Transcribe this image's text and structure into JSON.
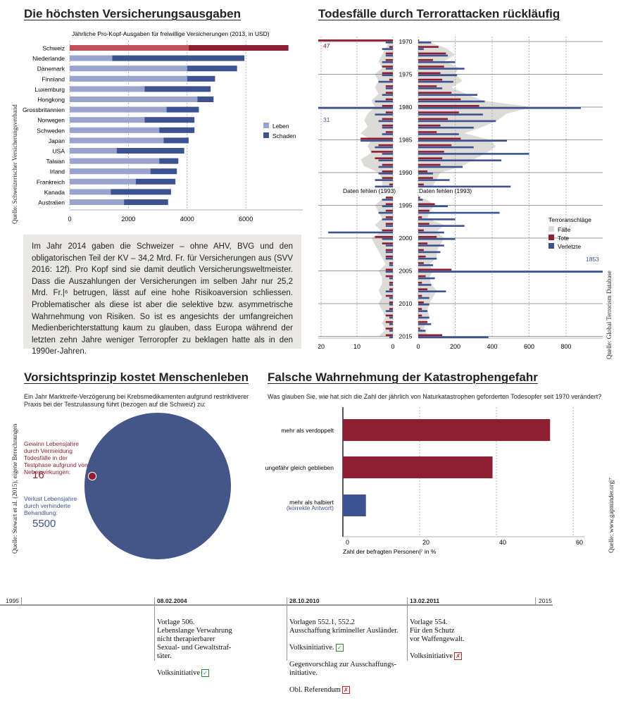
{
  "insurance": {
    "title": "Die höchsten Versicherungsausgaben",
    "subtitle": "Jährliche Pro-Kopf-Ausgaben für freiwillige Versicherungen (2013, in USD)",
    "source": "Quelle: Schweizerischer Versicherungsverband",
    "legend": [
      "Leben",
      "Schaden"
    ]
  },
  "terror": {
    "title": "Todesfälle durch Terrorattacken rückläufig",
    "source": "Quelle: Global Terrorism Database",
    "legend_title": "Terroranschläge",
    "legend": [
      "Fälle",
      "Tote",
      "Verletzte"
    ],
    "missing_left": "Daten fehlen (1993)",
    "missing_right": "Daten fehlen (1993)",
    "label_47": "47",
    "label_31": "31",
    "label_1853": "1853"
  },
  "textbox": {
    "text": "Im Jahr 2014 gaben die Schweizer – ohne AHV, BVG und den obligatorischen Teil der KV – 34,2 Mrd. Fr. für Versicherungen aus (SVV 2016: 12f). Pro Kopf sind sie damit deutlich Versicherungsweltmeister. Dass die Auszahlungen der Versicherungen im selben Jahr nur 25,2 Mrd. Fr.|⁶ betrugen, lässt auf eine hohe Risikoaversion schliessen. Problematischer als diese ist aber die selektive bzw. asymmetrische Wahrnehmung von Risiken. So ist es angesichts der umfangreichen Medienberichterstattung kaum zu glauben, dass Europa während der letzten zehn Jahre weniger Terroropfer zu beklagen hatte als in den 1990er-Jahren."
  },
  "precaution": {
    "title": "Vorsichtsprinzip kostet Menschenleben",
    "subtitle": "Ein Jahr Marktreife-Verzögerung bei Krebsmedikamenten aufgrund restriktiverer Praxis bei der Testzulassung führt (bezogen auf die Schweiz) zu:",
    "gain_label": "Gewinn Lebensjahre durch Vermeidung Todesfälle in der Testphase aufgrund von Nebenwirkungen:",
    "gain_value": "16",
    "loss_label": "Verlust Lebensjahre durch verhinderte Behandlung:",
    "loss_value": "5500",
    "source": "Quelle: Stewart et al. (2015), eigene Berechnungen"
  },
  "perception": {
    "title": "Falsche Wahrnehmung der Katastrophengefahr",
    "question": "Was glauben Sie, wie hat sich die Zahl der jährlich von Naturkatastrophen geforderten Todesopfer seit 1970 verändert?",
    "xlabel": "Zahl der befragten Personen|⁷ in %",
    "correct_note": "(korrekte Antwort)",
    "source": "Quelle: www.gapminder.org|⁷"
  },
  "timeline": {
    "start_year": "1995",
    "end_year": "2015",
    "events": [
      {
        "date": "08.02.2004",
        "text": "Vorlage 506.\nLebenslange Verwahrung\nnicht therapierbarer\nSexual- und Gewaltstraf-\ntäter.",
        "last": "Volksinitiative",
        "result": "yes"
      },
      {
        "date": "28.10.2010",
        "text": "Vorlagen 552.1, 552.2\nAusschaffung krimineller Ausländer.",
        "mid": "Volksinitiative.",
        "mid_result": "yes",
        "text2": "Gegenvorschlag zur Ausschaffungs-\ninitiative.",
        "last": "Obl. Referendum",
        "result": "no"
      },
      {
        "date": "13.02.2011",
        "text": "Vorlage 554.\nFür den Schutz\nvor Waffengewalt.",
        "last": "Volksinitiative",
        "result": "no"
      }
    ]
  },
  "colors": {
    "leben": "#9aa3cc",
    "schaden": "#3d5290",
    "red": "#8d1f30",
    "red_light": "#c2505a",
    "grey": "#dddbd7",
    "blue": "#3d5290"
  },
  "chart_data": [
    {
      "type": "bar",
      "title": "Die höchsten Versicherungsausgaben",
      "subtitle": "Jährliche Pro-Kopf-Ausgaben für freiwillige Versicherungen (2013, in USD)",
      "categories": [
        "Schweiz",
        "Niederlande",
        "Dänemark",
        "Finnland",
        "Luxemburg",
        "Hongkong",
        "Grossbritannien",
        "Norwegen",
        "Schweden",
        "Japan",
        "USA",
        "Taiwan",
        "Irland",
        "Frankreich",
        "Kanada",
        "Australien"
      ],
      "series": [
        {
          "name": "Leben",
          "values": [
            4050,
            1450,
            4000,
            4000,
            2550,
            4350,
            3300,
            2550,
            3050,
            3200,
            1600,
            3050,
            2750,
            2250,
            1400,
            1850
          ]
        },
        {
          "name": "Schaden",
          "values": [
            3400,
            4500,
            1700,
            950,
            2250,
            550,
            1100,
            1700,
            1200,
            850,
            2300,
            650,
            900,
            1350,
            2050,
            1500
          ]
        }
      ],
      "xticks": [
        0,
        2000,
        4000,
        6000
      ],
      "xlim": [
        0,
        8000
      ],
      "grid": true,
      "legend": "right"
    },
    {
      "type": "bar",
      "title": "Todesfälle durch Terrorattacken rückläufig",
      "years": [
        1970,
        1971,
        1972,
        1973,
        1974,
        1975,
        1976,
        1977,
        1978,
        1979,
        1980,
        1981,
        1982,
        1983,
        1984,
        1985,
        1986,
        1987,
        1988,
        1989,
        1990,
        1991,
        1992,
        1993,
        1994,
        1995,
        1996,
        1997,
        1998,
        1999,
        2000,
        2001,
        2002,
        2003,
        2004,
        2005,
        2006,
        2007,
        2008,
        2009,
        2010,
        2011,
        2012,
        2013,
        2014,
        2015
      ],
      "left_xticks": [
        20,
        10,
        0
      ],
      "right_xticks": [
        0,
        200,
        400,
        600,
        800
      ],
      "series": [
        {
          "name": "Fälle",
          "axis": "left",
          "values": [
            1,
            2,
            3,
            4,
            3,
            5,
            4,
            5,
            4,
            6,
            5,
            7,
            8,
            7,
            9,
            6,
            7,
            6,
            9,
            8,
            4,
            3,
            3,
            null,
            3,
            5,
            4,
            3,
            5,
            3,
            6,
            5,
            4,
            3,
            2,
            4,
            3,
            3,
            4,
            3,
            4,
            3,
            2,
            3,
            2,
            4
          ]
        },
        {
          "name": "Tote",
          "axis": "left",
          "values": [
            47,
            1,
            2,
            2,
            3,
            3,
            1,
            2,
            2,
            2,
            3,
            2,
            3,
            3,
            2,
            9,
            4,
            6,
            5,
            3,
            3,
            3,
            1,
            null,
            2,
            2,
            2,
            2,
            2,
            3,
            5,
            3,
            2,
            2,
            1,
            2,
            2,
            1,
            1,
            2,
            1,
            1,
            2,
            2,
            2,
            2
          ]
        },
        {
          "name": "Verletzte",
          "axis": "left",
          "values": [
            2,
            3,
            2,
            3,
            2,
            3,
            4,
            2,
            3,
            5,
            31,
            5,
            4,
            3,
            3,
            9,
            5,
            3,
            4,
            4,
            4,
            5,
            5,
            null,
            3,
            3,
            4,
            3,
            2,
            18,
            3,
            2,
            2,
            2,
            1,
            2,
            1,
            1,
            2,
            1,
            1,
            2,
            1,
            1,
            1,
            1
          ]
        },
        {
          "name": "Fälle",
          "axis": "right",
          "values": [
            50,
            150,
            200,
            140,
            220,
            200,
            240,
            180,
            260,
            350,
            620,
            480,
            430,
            350,
            250,
            390,
            420,
            370,
            300,
            240,
            120,
            100,
            80,
            null,
            40,
            90,
            60,
            50,
            140,
            100,
            140,
            120,
            100,
            100,
            60,
            80,
            60,
            70,
            100,
            80,
            60,
            50,
            60,
            40,
            30,
            60
          ]
        },
        {
          "name": "Tote",
          "axis": "right",
          "values": [
            5,
            110,
            150,
            80,
            140,
            120,
            130,
            100,
            180,
            230,
            330,
            220,
            160,
            120,
            100,
            230,
            180,
            140,
            130,
            120,
            50,
            80,
            30,
            null,
            10,
            90,
            60,
            20,
            60,
            30,
            100,
            50,
            30,
            40,
            30,
            180,
            40,
            20,
            50,
            20,
            30,
            20,
            20,
            50,
            10,
            130
          ]
        },
        {
          "name": "Verletzte",
          "axis": "right",
          "values": [
            70,
            30,
            160,
            200,
            250,
            210,
            190,
            130,
            320,
            360,
            880,
            350,
            420,
            300,
            220,
            480,
            300,
            600,
            450,
            240,
            80,
            170,
            500,
            null,
            25,
            160,
            440,
            200,
            250,
            140,
            200,
            140,
            120,
            100,
            80,
            1853,
            90,
            70,
            150,
            60,
            60,
            50,
            60,
            70,
            40,
            380
          ]
        }
      ],
      "legend": "right",
      "grid": true
    },
    {
      "type": "pie",
      "title": "Vorsichtsprinzip kostet Menschenleben",
      "categories": [
        "Gewinn Lebensjahre",
        "Verlust Lebensjahre"
      ],
      "values": [
        16,
        5500
      ]
    },
    {
      "type": "bar",
      "title": "Falsche Wahrnehmung der Katastrophengefahr",
      "categories": [
        "mehr als verdoppelt",
        "ungefähr gleich geblieben",
        "mehr als halbiert"
      ],
      "values": [
        54,
        39,
        6
      ],
      "xlabel": "Zahl der befragten Personen|⁷ in %",
      "xticks": [
        0,
        20,
        40,
        60
      ],
      "xlim": [
        0,
        60
      ],
      "grid": true
    }
  ]
}
